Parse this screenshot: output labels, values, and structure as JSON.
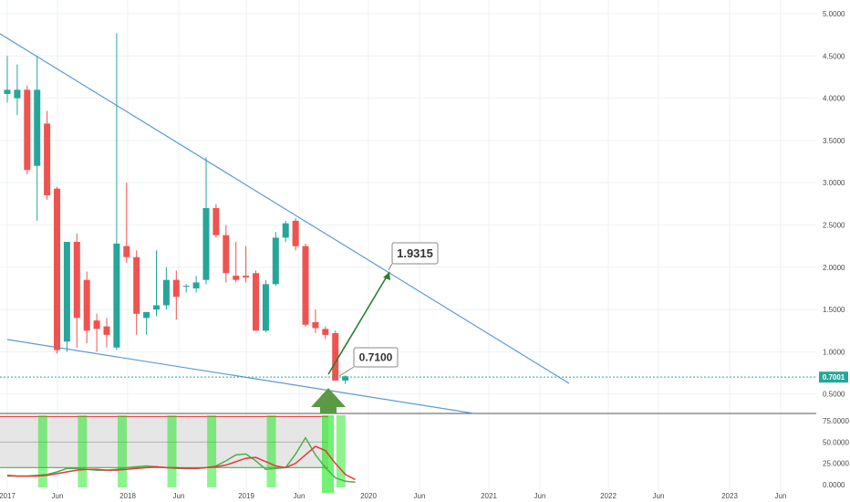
{
  "chart_data": [
    {
      "type": "candlestick",
      "title": "",
      "y_axis": {
        "ticks": [
          "5.0000",
          "4.5000",
          "4.0000",
          "3.5000",
          "3.0000",
          "2.5000",
          "2.0000",
          "1.5000",
          "1.0000",
          "0.5000"
        ],
        "range": [
          0.25,
          5.0
        ]
      },
      "x_axis": {
        "ticks": [
          "2017",
          "Jun",
          "2018",
          "Jun",
          "2019",
          "Jun",
          "2020",
          "Jun",
          "2021",
          "Jun",
          "2022",
          "Jun",
          "2023",
          "Jun"
        ]
      },
      "candles": [
        {
          "o": 4.05,
          "h": 4.5,
          "l": 3.95,
          "c": 4.1
        },
        {
          "o": 4.0,
          "h": 4.4,
          "l": 3.8,
          "c": 4.1
        },
        {
          "o": 4.1,
          "h": 4.15,
          "l": 3.1,
          "c": 3.15
        },
        {
          "o": 3.2,
          "h": 4.5,
          "l": 2.55,
          "c": 4.1
        },
        {
          "o": 3.7,
          "h": 3.85,
          "l": 2.8,
          "c": 2.85
        },
        {
          "o": 2.93,
          "h": 2.95,
          "l": 0.98,
          "c": 1.02
        },
        {
          "o": 1.12,
          "h": 2.3,
          "l": 1.0,
          "c": 2.3
        },
        {
          "o": 2.3,
          "h": 2.4,
          "l": 1.05,
          "c": 1.4
        },
        {
          "o": 1.85,
          "h": 1.95,
          "l": 1.1,
          "c": 1.25
        },
        {
          "o": 1.37,
          "h": 1.45,
          "l": 1.0,
          "c": 1.27
        },
        {
          "o": 1.3,
          "h": 1.4,
          "l": 1.05,
          "c": 1.2
        },
        {
          "o": 1.05,
          "h": 4.77,
          "l": 1.02,
          "c": 2.28
        },
        {
          "o": 2.25,
          "h": 3.0,
          "l": 2.05,
          "c": 2.12
        },
        {
          "o": 2.12,
          "h": 2.2,
          "l": 1.2,
          "c": 1.45
        },
        {
          "o": 1.4,
          "h": 1.47,
          "l": 1.2,
          "c": 1.47
        },
        {
          "o": 1.5,
          "h": 2.2,
          "l": 1.42,
          "c": 1.55
        },
        {
          "o": 1.55,
          "h": 2.0,
          "l": 1.5,
          "c": 1.85
        },
        {
          "o": 1.85,
          "h": 1.96,
          "l": 1.38,
          "c": 1.65
        },
        {
          "o": 1.78,
          "h": 1.8,
          "l": 1.7,
          "c": 1.78
        },
        {
          "o": 1.75,
          "h": 1.9,
          "l": 1.7,
          "c": 1.82
        },
        {
          "o": 1.85,
          "h": 3.3,
          "l": 1.8,
          "c": 2.7
        },
        {
          "o": 2.7,
          "h": 2.75,
          "l": 2.35,
          "c": 2.38
        },
        {
          "o": 2.38,
          "h": 2.5,
          "l": 1.82,
          "c": 1.93
        },
        {
          "o": 1.9,
          "h": 2.3,
          "l": 1.82,
          "c": 1.85
        },
        {
          "o": 1.9,
          "h": 2.25,
          "l": 1.82,
          "c": 1.88
        },
        {
          "o": 1.93,
          "h": 1.96,
          "l": 1.25,
          "c": 1.25
        },
        {
          "o": 1.25,
          "h": 1.85,
          "l": 1.23,
          "c": 1.8
        },
        {
          "o": 1.8,
          "h": 2.42,
          "l": 1.78,
          "c": 2.35
        },
        {
          "o": 2.35,
          "h": 2.55,
          "l": 2.3,
          "c": 2.52
        },
        {
          "o": 2.55,
          "h": 2.58,
          "l": 2.2,
          "c": 2.25
        },
        {
          "o": 2.25,
          "h": 2.28,
          "l": 1.3,
          "c": 1.32
        },
        {
          "o": 1.35,
          "h": 1.5,
          "l": 1.22,
          "c": 1.28
        },
        {
          "o": 1.27,
          "h": 1.3,
          "l": 1.15,
          "c": 1.2
        },
        {
          "o": 1.22,
          "h": 1.25,
          "l": 0.66,
          "c": 0.66
        },
        {
          "o": 0.66,
          "h": 0.72,
          "l": 0.62,
          "c": 0.71
        }
      ],
      "current_price": {
        "value": 0.7001,
        "label": "0.7001"
      },
      "annotations": [
        {
          "label": "0.7100"
        },
        {
          "label": "1.9315"
        }
      ],
      "colors": {
        "up": "#26a69a",
        "down": "#ef5350",
        "trendline": "#5b9bd5",
        "projection": "#2e7d32",
        "marker": "#5b9a45"
      }
    },
    {
      "type": "line",
      "indicator": "oscillator",
      "y_axis": {
        "ticks": [
          "75.0000",
          "50.0000",
          "25.0000",
          "0.0000"
        ],
        "range": [
          0,
          90
        ]
      },
      "band": [
        20,
        80
      ],
      "series": [
        {
          "color": "#4caf50",
          "values": [
            10,
            10,
            10,
            11,
            12,
            15,
            19,
            19,
            18,
            17,
            17,
            18,
            20,
            21,
            22,
            21,
            20,
            19,
            19,
            19,
            20,
            22,
            28,
            35,
            36,
            28,
            18,
            19,
            20,
            36,
            55,
            35,
            20,
            8,
            4,
            3
          ]
        },
        {
          "color": "#e53935",
          "values": [
            11,
            10,
            10,
            10,
            11,
            13,
            15,
            17,
            18,
            18,
            17,
            17,
            18,
            19,
            20,
            21,
            20,
            20,
            19,
            19,
            20,
            21,
            23,
            27,
            31,
            32,
            27,
            22,
            20,
            25,
            35,
            45,
            40,
            25,
            12,
            6
          ]
        }
      ],
      "highlight_candle_indices": [
        2,
        6,
        10,
        15,
        19,
        25,
        32
      ]
    }
  ]
}
